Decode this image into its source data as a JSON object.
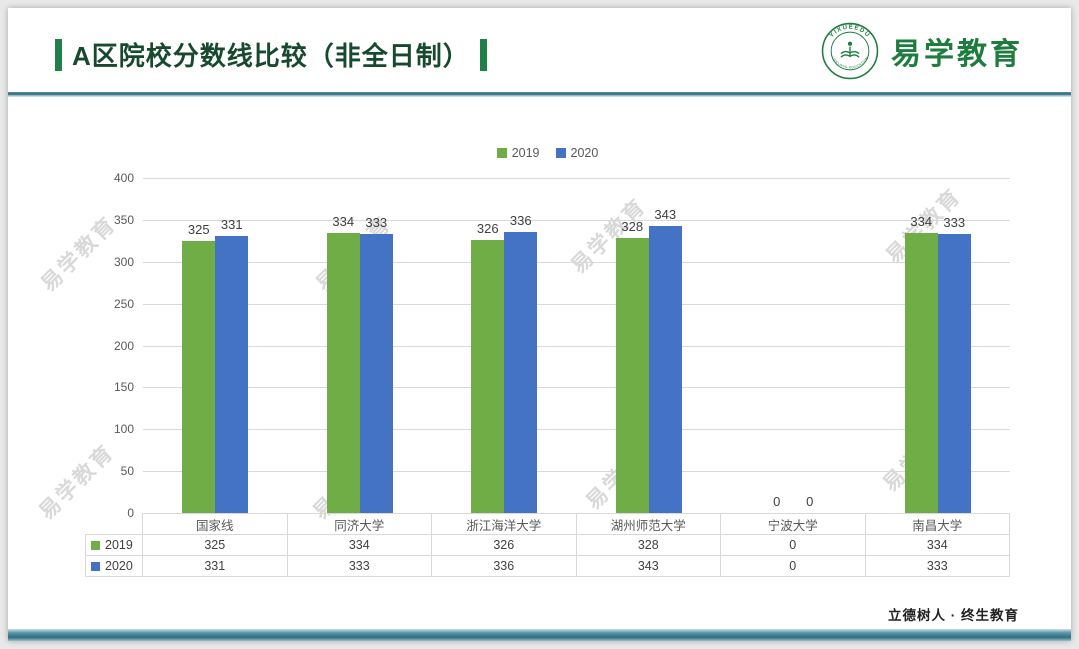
{
  "header": {
    "title": "A区院校分数线比较（非全日制）",
    "logo": {
      "name": "易学教育",
      "ring_top": "YIXUEEDU",
      "ring_bottom": "LIFELONG EDUCATION"
    }
  },
  "footer": {
    "slogan": "立德树人 · 终生教育"
  },
  "watermark_text": "易学教育",
  "colors": {
    "series_2019": "#70AD47",
    "series_2020": "#4472C4",
    "accent_green": "#1f8048",
    "divider_teal": "#2e6f82"
  },
  "chart_data": {
    "type": "bar",
    "title": "",
    "categories": [
      "国家线",
      "同济大学",
      "浙江海洋大学",
      "湖州师范大学",
      "宁波大学",
      "南昌大学"
    ],
    "series": [
      {
        "name": "2019",
        "color": "#70AD47",
        "values": [
          325,
          334,
          326,
          328,
          0,
          334
        ]
      },
      {
        "name": "2020",
        "color": "#4472C4",
        "values": [
          331,
          333,
          336,
          343,
          0,
          333
        ]
      }
    ],
    "xlabel": "",
    "ylabel": "",
    "ylim": [
      0,
      400
    ],
    "ytick_step": 50,
    "grid": true,
    "legend_position": "top",
    "show_value_labels": true,
    "show_data_table": true
  }
}
